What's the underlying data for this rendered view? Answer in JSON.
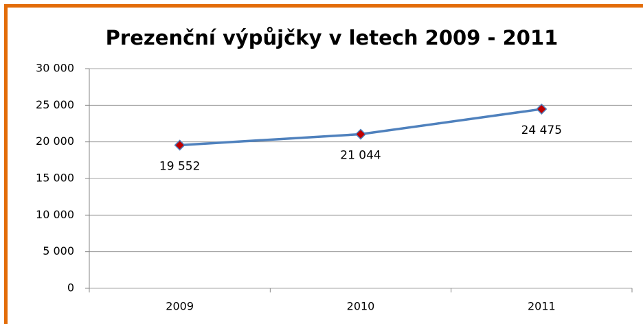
{
  "chart_data": {
    "type": "line",
    "title": "Prezenční výpůjčky v letech 2009 - 2011",
    "categories": [
      "2009",
      "2010",
      "2011"
    ],
    "series": [
      {
        "name": null,
        "color": "#4f81bd",
        "marker_color": "#c00000",
        "values": [
          19552,
          21044,
          24475
        ],
        "value_labels": [
          "19 552",
          "21 044",
          "24 475"
        ]
      }
    ],
    "ylim": [
      0,
      30000
    ],
    "yticks": [
      0,
      {
        "value": 5000,
        "label": "5 000"
      },
      {
        "value": 10000,
        "label": "10 000"
      },
      {
        "value": 15000,
        "label": "15 000"
      },
      {
        "value": 20000,
        "label": "20 000"
      },
      {
        "value": 25000,
        "label": "25 000"
      },
      {
        "value": 30000,
        "label": "30 000"
      }
    ],
    "grid": true
  }
}
